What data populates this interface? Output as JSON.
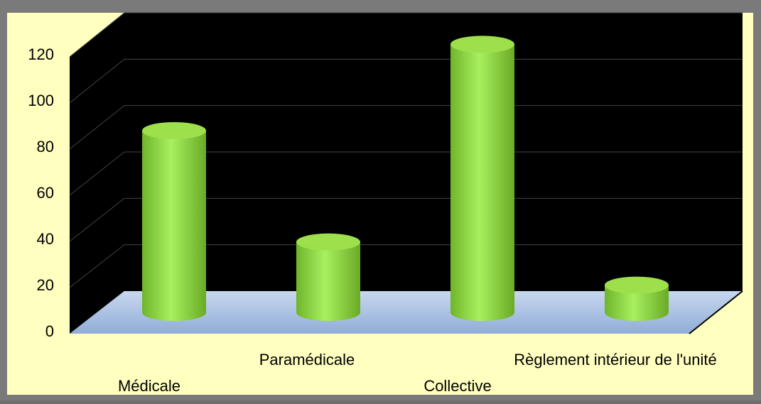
{
  "chart_data": {
    "type": "bar",
    "categories": [
      "Médicale",
      "Paramédicale",
      "Collective",
      "Règlement intérieur de l'unité"
    ],
    "values": [
      80,
      31,
      118,
      12
    ],
    "color": "#8fd63a",
    "ylim": [
      0,
      120
    ],
    "yticks": [
      0,
      20,
      40,
      60,
      80,
      100,
      120
    ],
    "grid": true
  }
}
